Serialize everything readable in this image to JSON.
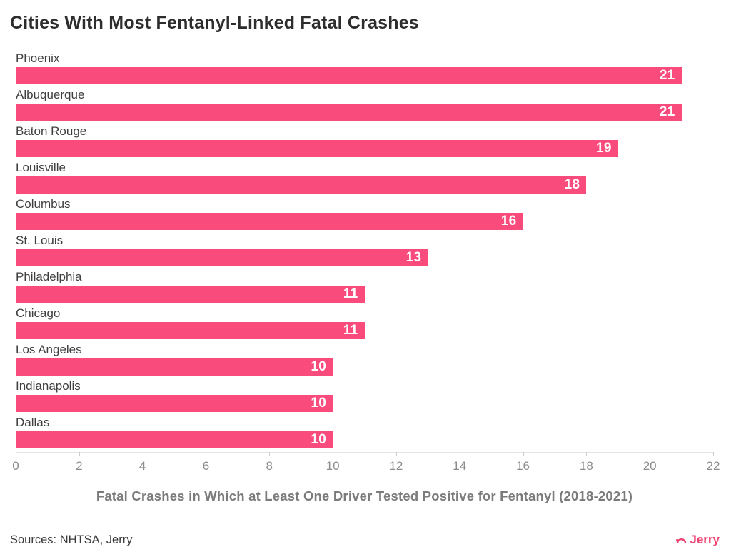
{
  "title": "Cities With Most Fentanyl-Linked Fatal Crashes",
  "chart_data": {
    "type": "bar",
    "orientation": "horizontal",
    "categories": [
      "Phoenix",
      "Albuquerque",
      "Baton Rouge",
      "Louisville",
      "Columbus",
      "St. Louis",
      "Philadelphia",
      "Chicago",
      "Los Angeles",
      "Indianapolis",
      "Dallas"
    ],
    "values": [
      21,
      21,
      19,
      18,
      16,
      13,
      11,
      11,
      10,
      10,
      10
    ],
    "title": "Cities With Most Fentanyl-Linked Fatal Crashes",
    "xlabel": "Fatal Crashes in Which at Least One Driver Tested Positive for Fentanyl (2018-2021)",
    "ylabel": "",
    "xlim": [
      0,
      22
    ],
    "xticks": [
      0,
      2,
      4,
      6,
      8,
      10,
      12,
      14,
      16,
      18,
      20,
      22
    ],
    "grid": false,
    "value_labels_inside_bar_end": true,
    "bar_color": "#fa4b7d",
    "value_label_color": "#ffffff"
  },
  "footer": {
    "sources": "Sources: NHTSA, Jerry",
    "brand": "Jerry"
  },
  "colors": {
    "accent_pink": "#fa4b7d",
    "brand_pink": "#f04373",
    "title_text": "#2d2d2d",
    "category_text": "#3e3e3e",
    "tick_text": "#8c8c8c",
    "axis_label_text": "#7b7b7b",
    "axis_line": "#e4e4e4"
  }
}
